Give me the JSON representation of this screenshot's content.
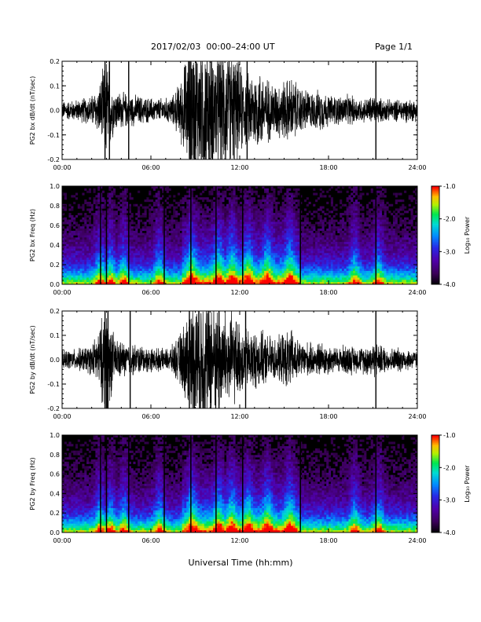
{
  "header": {
    "title": "2017/02/03  00:00–24:00 UT",
    "page": "Page 1/1"
  },
  "xlabel": "Universal Time (hh:mm)",
  "chart_data": [
    {
      "type": "line",
      "panel": "PG2 bx dB/dt",
      "ylabel": "PG2 bx dB/dt (nT/sec)",
      "ylim": [
        -0.2,
        0.2
      ],
      "yticks": [
        "0.2",
        "0.1",
        "0.0",
        "-0.1",
        "-0.2"
      ],
      "xticks": [
        "00:00",
        "06:00",
        "12:00",
        "18:00",
        "24:00"
      ],
      "xlim_hours": [
        0,
        24
      ],
      "envelope": {
        "hours": [
          0,
          1,
          2,
          2.5,
          3,
          3.5,
          4,
          5,
          6,
          7,
          7.5,
          8,
          8.5,
          9,
          9.5,
          10,
          10.5,
          11,
          11.5,
          12,
          12.5,
          13,
          13.5,
          14,
          14.5,
          15,
          15.5,
          16,
          16.5,
          17,
          17.5,
          18,
          18.5,
          19,
          19.5,
          20,
          20.5,
          21,
          21.5,
          22,
          22.5,
          23,
          24
        ],
        "amplitude": [
          0.03,
          0.035,
          0.05,
          0.08,
          0.18,
          0.07,
          0.06,
          0.05,
          0.04,
          0.04,
          0.05,
          0.1,
          0.2,
          0.22,
          0.24,
          0.22,
          0.2,
          0.21,
          0.2,
          0.15,
          0.12,
          0.14,
          0.13,
          0.1,
          0.09,
          0.1,
          0.11,
          0.08,
          0.07,
          0.06,
          0.07,
          0.05,
          0.05,
          0.05,
          0.05,
          0.04,
          0.04,
          0.05,
          0.04,
          0.035,
          0.035,
          0.04,
          0.035
        ]
      },
      "spikes_hours": [
        2.9,
        3.2,
        4.5,
        8.7,
        12.5,
        21.2
      ]
    },
    {
      "type": "heatmap",
      "panel": "PG2 bx Freq",
      "ylabel": "PG2 bx Freq (Hz)",
      "ylim": [
        0,
        1.0
      ],
      "yticks": [
        "1.0",
        "0.8",
        "0.6",
        "0.4",
        "0.2",
        "0.0"
      ],
      "xticks": [
        "00:00",
        "06:00",
        "12:00",
        "18:00",
        "24:00"
      ],
      "colorbar": {
        "label": "Log₁₀ Power",
        "range": [
          -4,
          -1
        ],
        "ticks": [
          "-1.0",
          "-2.0",
          "-3.0",
          "-4.0"
        ]
      },
      "vertical_lines_hours": [
        2.6,
        3.0,
        4.5,
        6.9,
        8.7,
        10.4,
        12.2,
        16.1,
        21.2
      ],
      "activity_hours": [
        2.5,
        3.2,
        4.1,
        6.5,
        8.7,
        10.5,
        11.4,
        12.5,
        13.8,
        15.3,
        19.7,
        21.3
      ]
    },
    {
      "type": "line",
      "panel": "PG2 by dB/dt",
      "ylabel": "PG2 by dB/dt (nT/sec)",
      "ylim": [
        -0.2,
        0.2
      ],
      "yticks": [
        "0.2",
        "0.1",
        "0.0",
        "-0.1",
        "-0.2"
      ],
      "xticks": [
        "00:00",
        "06:00",
        "12:00",
        "18:00",
        "24:00"
      ],
      "xlim_hours": [
        0,
        24
      ],
      "envelope": {
        "hours": [
          0,
          1,
          2,
          2.5,
          3,
          3.5,
          4,
          5,
          6,
          7,
          7.5,
          8,
          8.5,
          9,
          9.5,
          10,
          10.5,
          11,
          11.5,
          12,
          12.5,
          13,
          13.5,
          14,
          14.5,
          15,
          15.5,
          16,
          16.5,
          17,
          17.5,
          18,
          18.5,
          19,
          19.5,
          20,
          20.5,
          21,
          21.5,
          22,
          22.5,
          23,
          24
        ],
        "amplitude": [
          0.03,
          0.035,
          0.05,
          0.1,
          0.2,
          0.08,
          0.06,
          0.05,
          0.04,
          0.035,
          0.05,
          0.09,
          0.16,
          0.22,
          0.24,
          0.22,
          0.18,
          0.17,
          0.16,
          0.12,
          0.1,
          0.1,
          0.09,
          0.08,
          0.07,
          0.09,
          0.1,
          0.06,
          0.06,
          0.05,
          0.06,
          0.05,
          0.04,
          0.05,
          0.05,
          0.04,
          0.05,
          0.06,
          0.05,
          0.04,
          0.04,
          0.04,
          0.03
        ]
      },
      "spikes_hours": [
        2.9,
        3.1,
        4.6,
        8.6,
        10.6,
        12.4,
        21.2
      ]
    },
    {
      "type": "heatmap",
      "panel": "PG2 by Freq",
      "ylabel": "PG2 by Freq (Hz)",
      "ylim": [
        0,
        1.0
      ],
      "yticks": [
        "1.0",
        "0.8",
        "0.6",
        "0.4",
        "0.2",
        "0.0"
      ],
      "xticks": [
        "00:00",
        "06:00",
        "12:00",
        "18:00",
        "24:00"
      ],
      "colorbar": {
        "label": "Log₁₀ Power",
        "range": [
          -4,
          -1
        ],
        "ticks": [
          "-1.0",
          "-2.0",
          "-3.0",
          "-4.0"
        ]
      },
      "vertical_lines_hours": [
        2.6,
        3.0,
        4.5,
        6.9,
        8.7,
        10.4,
        12.2,
        16.1,
        21.2
      ],
      "activity_hours": [
        2.5,
        3.2,
        4.1,
        6.5,
        8.7,
        10.5,
        11.4,
        12.5,
        13.8,
        15.3,
        19.7,
        21.3
      ]
    }
  ]
}
